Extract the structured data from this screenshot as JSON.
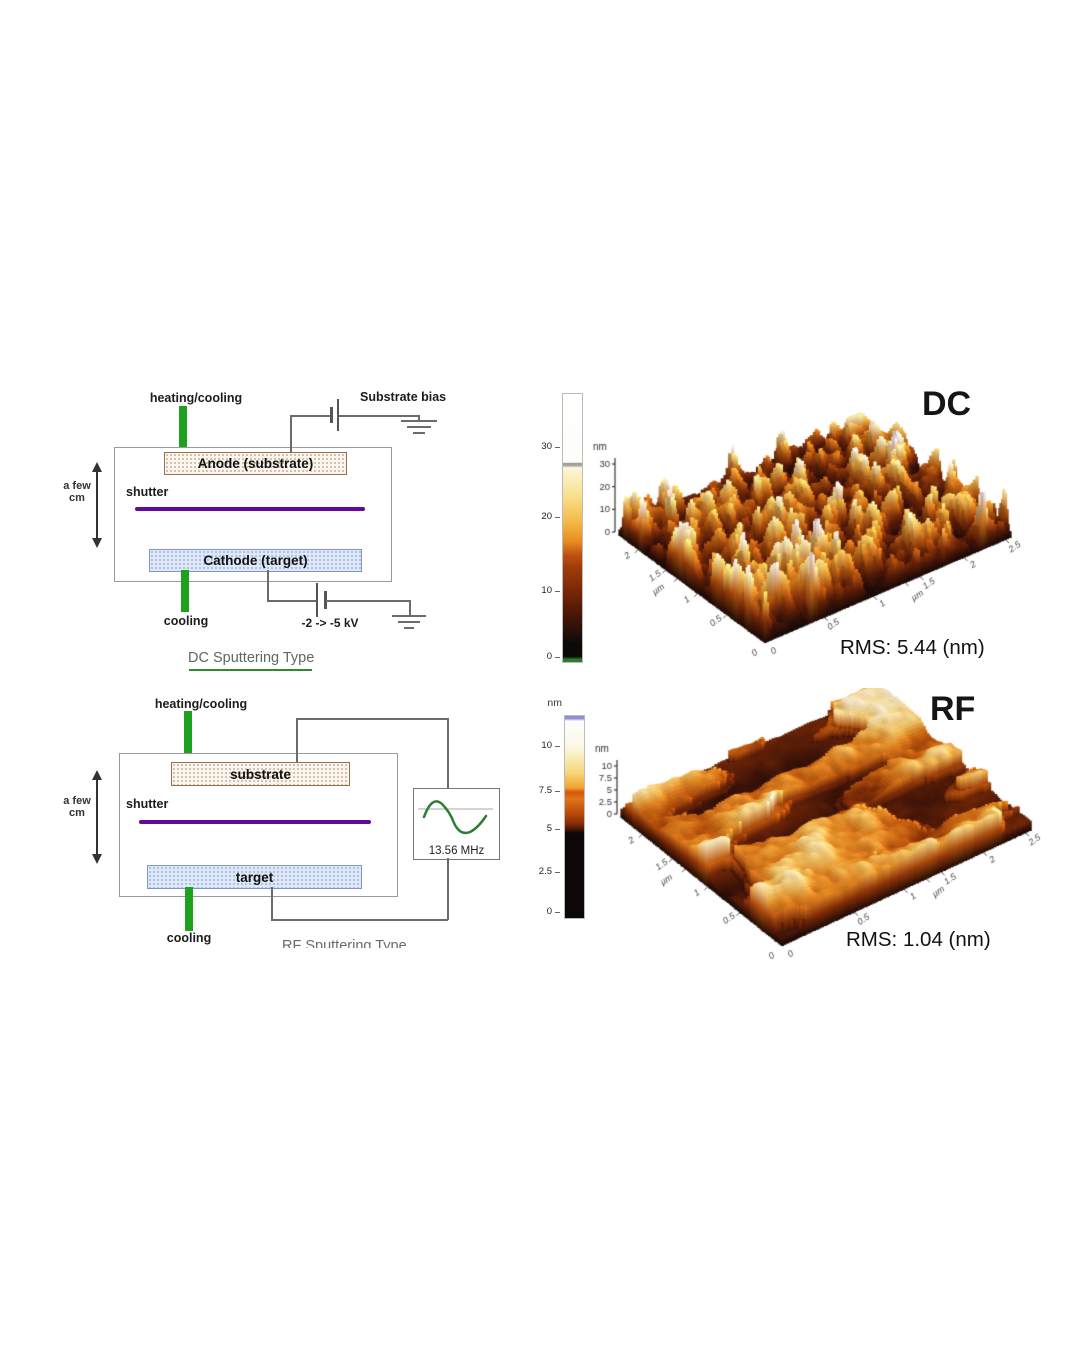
{
  "dc_diagram": {
    "heating_cooling": "heating/cooling",
    "substrate_bias": "Substrate bias",
    "anode": "Anode (substrate)",
    "shutter": "shutter",
    "cathode": "Cathode (target)",
    "cooling": "cooling",
    "voltage": "-2 -> -5 kV",
    "scale_line1": "a few",
    "scale_line2": "cm",
    "title": "DC Sputtering Type"
  },
  "rf_diagram": {
    "heating_cooling": "heating/cooling",
    "substrate": "substrate",
    "shutter": "shutter",
    "target": "target",
    "cooling": "cooling",
    "frequency": "13.56 MHz",
    "scale_line1": "a few",
    "scale_line2": "cm",
    "title": "RF Sputtering Type"
  },
  "afm_dc": {
    "title": "DC",
    "rms_label": "RMS: 5.44 (nm)",
    "colorbar_ticks": [
      "30",
      "20",
      "10",
      "0"
    ],
    "colorbar_gradient": [
      "#fefefd 0%",
      "#fdfdfa 25.5%",
      "#a0a0a0 25.8%",
      "#a0a0a0 26.6%",
      "#fcf6da 27.5%",
      "#f8e18c 38%",
      "#f2b845 48%",
      "#e88c20 55%",
      "#b84a10 60.8%",
      "#b84a10 61.6%",
      "#a43e0a 64%",
      "#7c2807 73%",
      "#4c1606 82%",
      "#23100b 89%",
      "#0d0906 93%",
      "#0d0906 98%",
      "#2c7c30 99%",
      "#2c7c30 100%"
    ]
  },
  "afm_rf": {
    "title": "RF",
    "rms_label": "RMS: 1.04 (nm)",
    "colorbar_unit": "nm",
    "colorbar_ticks": [
      "10",
      "7.5",
      "5",
      "2.5",
      "0"
    ],
    "colorbar_gradient": [
      "#8f8fd8 0%",
      "#8f8fd8 1.3%",
      "#fdfdfb 2.5%",
      "#fcf9ea 14%",
      "#f9eebe 20%",
      "#f6d678 28%",
      "#efa430 35.5%",
      "#d85c10 37.5%",
      "#d85c10 38.5%",
      "#df7518 41%",
      "#bc4a0a 48%",
      "#8a2d08 53%",
      "#4a1608 56%",
      "#140b08 57.5%",
      "#0b0807 58%",
      "#0b0807 100%"
    ]
  },
  "chart_data": [
    {
      "type": "surface",
      "id": "dc",
      "title": "DC",
      "zlabel": "nm",
      "z_range_nm": [
        0,
        30
      ],
      "z_ticks": [
        [
          "0",
          0
        ],
        [
          "10",
          0.333
        ],
        [
          "20",
          0.667
        ],
        [
          "30",
          1
        ]
      ],
      "x_range_um": [
        0,
        2.5
      ],
      "y_range_um": [
        0,
        2.5
      ],
      "edge_labels_left": [
        [
          0.26,
          "0.5"
        ],
        [
          0.46,
          "1"
        ],
        [
          0.6,
          "µm"
        ],
        [
          0.68,
          "1.5"
        ],
        [
          0.87,
          "2"
        ]
      ],
      "edge_labels_right": [
        [
          0.24,
          "0.5"
        ],
        [
          0.44,
          "1"
        ],
        [
          0.57,
          "µm"
        ],
        [
          0.63,
          "1.5"
        ],
        [
          0.81,
          "2"
        ],
        [
          0.98,
          "2.5"
        ]
      ],
      "origin_label": "0 0",
      "rms_nm": 5.44,
      "surface_character": "dense sharp spikes, heights 0-30 nm, RMS roughness 5.44 nm",
      "palette": [
        [
          0,
          "#140a05"
        ],
        [
          0.1,
          "#31100a"
        ],
        [
          0.25,
          "#6b2208"
        ],
        [
          0.4,
          "#a84a0c"
        ],
        [
          0.55,
          "#e08420"
        ],
        [
          0.68,
          "#f2c055"
        ],
        [
          0.78,
          "#f4e09a"
        ],
        [
          0.88,
          "#f2ead2"
        ],
        [
          0.94,
          "#e9e5e1"
        ],
        [
          1,
          "#c6bcc8"
        ]
      ]
    },
    {
      "type": "surface",
      "id": "rf",
      "title": "RF",
      "zlabel": "nm",
      "z_range_nm": [
        0,
        10
      ],
      "z_ticks": [
        [
          "0",
          0
        ],
        [
          "2.5",
          0.25
        ],
        [
          "5",
          0.5
        ],
        [
          "7.5",
          0.75
        ],
        [
          "10",
          1
        ]
      ],
      "x_range_um": [
        0,
        2.5
      ],
      "y_range_um": [
        0,
        2.5
      ],
      "edge_labels_left": [
        [
          0.26,
          "0.5"
        ],
        [
          0.46,
          "1"
        ],
        [
          0.6,
          "µm"
        ],
        [
          0.68,
          "1.5"
        ],
        [
          0.87,
          "2"
        ]
      ],
      "edge_labels_right": [
        [
          0.29,
          "0.5"
        ],
        [
          0.49,
          "1"
        ],
        [
          0.58,
          "µm"
        ],
        [
          0.64,
          "1.5"
        ],
        [
          0.81,
          "2"
        ],
        [
          0.98,
          "2.5"
        ]
      ],
      "origin_label": "0 0",
      "rms_nm": 1.04,
      "surface_character": "smoother ridged grains with canyon cuts, heights 0-10 nm, RMS roughness 1.04 nm",
      "palette": [
        [
          0,
          "#120a06"
        ],
        [
          0.12,
          "#401408"
        ],
        [
          0.3,
          "#8a3008"
        ],
        [
          0.45,
          "#c65f10"
        ],
        [
          0.6,
          "#e89028"
        ],
        [
          0.72,
          "#f4c868"
        ],
        [
          0.82,
          "#f6e2a8"
        ],
        [
          0.9,
          "#efe8da"
        ],
        [
          1,
          "#c2bac6"
        ]
      ]
    }
  ]
}
